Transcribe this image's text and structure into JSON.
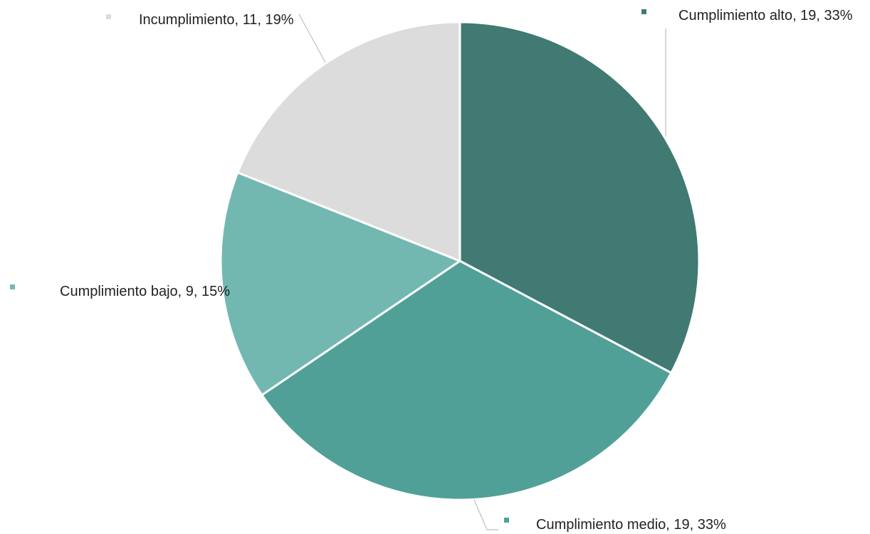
{
  "chart_data": {
    "type": "pie",
    "title": "",
    "slices": [
      {
        "label": "Cumplimiento alto",
        "value": 19,
        "percent": "33%",
        "color": "#407A73",
        "text": "Cumplimiento alto, 19, 33%"
      },
      {
        "label": "Cumplimiento medio",
        "value": 19,
        "percent": "33%",
        "color": "#50A098",
        "text": "Cumplimiento medio, 19, 33%"
      },
      {
        "label": "Cumplimiento bajo",
        "value": 9,
        "percent": "15%",
        "color": "#72B8B0",
        "text": "Cumplimiento bajo, 9, 15%"
      },
      {
        "label": "Incumplimiento",
        "value": 11,
        "percent": "19%",
        "color": "#DCDCDC",
        "text": "Incumplimiento, 11, 19%"
      }
    ],
    "start_angle": "12 o'clock",
    "direction": "clockwise",
    "legend": "none",
    "data_labels": "outside with leader lines"
  }
}
